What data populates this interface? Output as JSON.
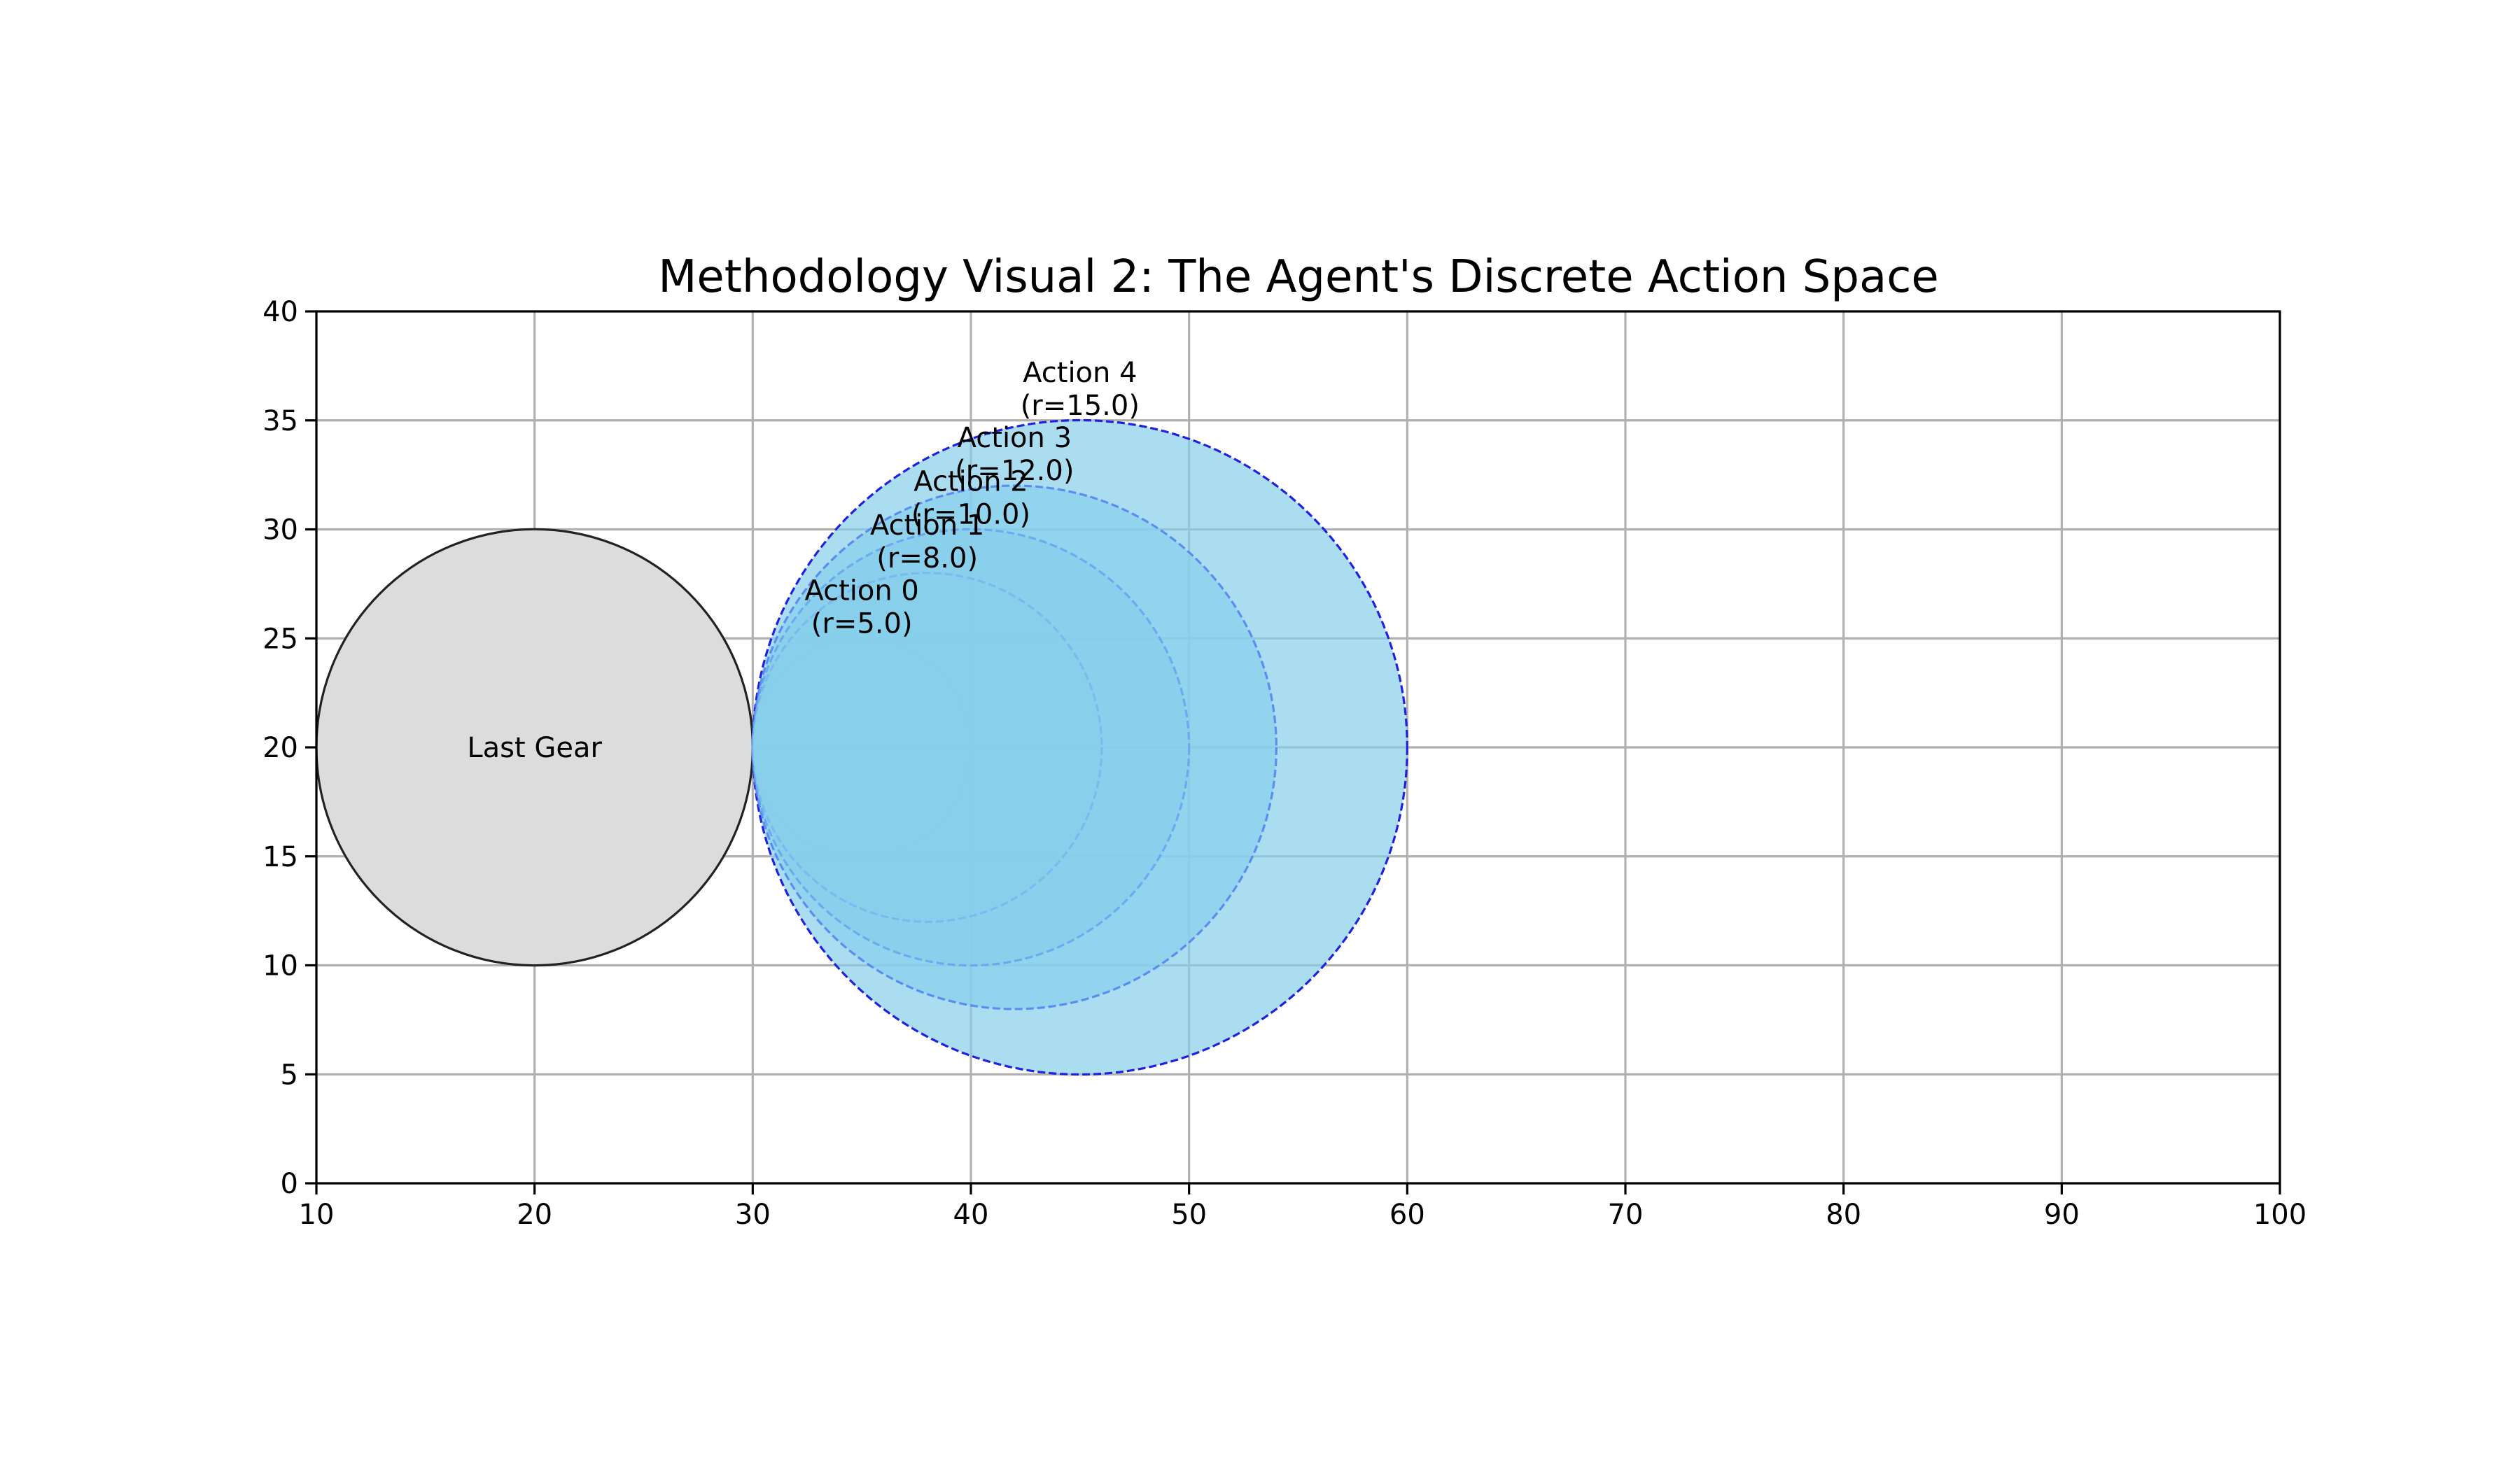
{
  "chart_data": {
    "type": "scatter",
    "title": "Methodology Visual 2: The Agent's Discrete Action Space",
    "xlabel": "",
    "ylabel": "",
    "xlim": [
      10,
      100
    ],
    "ylim": [
      0,
      40
    ],
    "x_ticks": [
      10,
      20,
      30,
      40,
      50,
      60,
      70,
      80,
      90,
      100
    ],
    "y_ticks": [
      0,
      5,
      10,
      15,
      20,
      25,
      30,
      35,
      40
    ],
    "grid": true,
    "aspect": "equal",
    "reference_circle": {
      "label": "Last Gear",
      "cx": 20,
      "cy": 20,
      "r": 10,
      "fill": "#dcdcdc",
      "edge": "#222222"
    },
    "action_circles": [
      {
        "label": "Action 0",
        "sublabel": "(r=5.0)",
        "cx": 35,
        "cy": 20,
        "r": 5.0,
        "fill": "#87ceeb",
        "edge": "#87ceeb",
        "edge_opacity": 0.35
      },
      {
        "label": "Action 1",
        "sublabel": "(r=8.0)",
        "cx": 38,
        "cy": 20,
        "r": 8.0,
        "fill": "#87ceeb",
        "edge": "#6fa8f0",
        "edge_opacity": 0.55
      },
      {
        "label": "Action 2",
        "sublabel": "(r=10.0)",
        "cx": 40,
        "cy": 20,
        "r": 10.0,
        "fill": "#87ceeb",
        "edge": "#5c9af0",
        "edge_opacity": 0.7
      },
      {
        "label": "Action 3",
        "sublabel": "(r=12.0)",
        "cx": 42,
        "cy": 20,
        "r": 12.0,
        "fill": "#87ceeb",
        "edge": "#4f7ff0",
        "edge_opacity": 0.85
      },
      {
        "label": "Action 4",
        "sublabel": "(r=15.0)",
        "cx": 45,
        "cy": 20,
        "r": 15.0,
        "fill": "#87ceeb",
        "edge": "#2020e0",
        "edge_opacity": 1.0
      }
    ]
  }
}
